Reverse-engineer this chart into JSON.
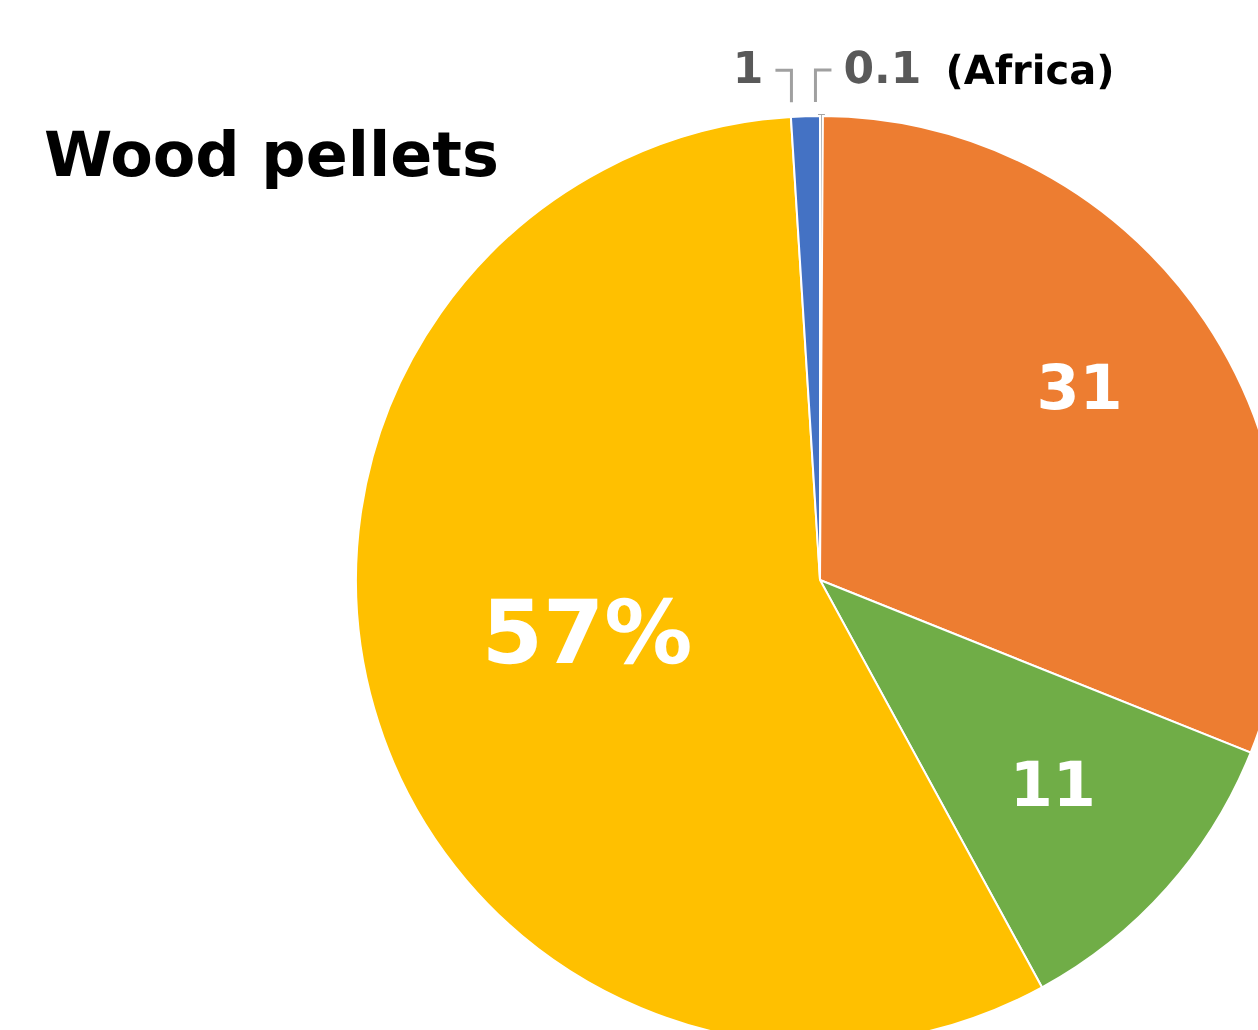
{
  "chart_data": {
    "type": "pie",
    "title": "Wood pellets",
    "categories": [
      "(Africa)",
      null,
      null,
      null,
      null
    ],
    "values": [
      0.1,
      31,
      11,
      57,
      1
    ],
    "colors": [
      "#a5a5a5",
      "#ed7d31",
      "#70ad47",
      "#ffc000",
      "#4472c4"
    ],
    "value_labels": [
      "0.1",
      "31",
      "11",
      "57%",
      "1"
    ],
    "legend": false
  }
}
